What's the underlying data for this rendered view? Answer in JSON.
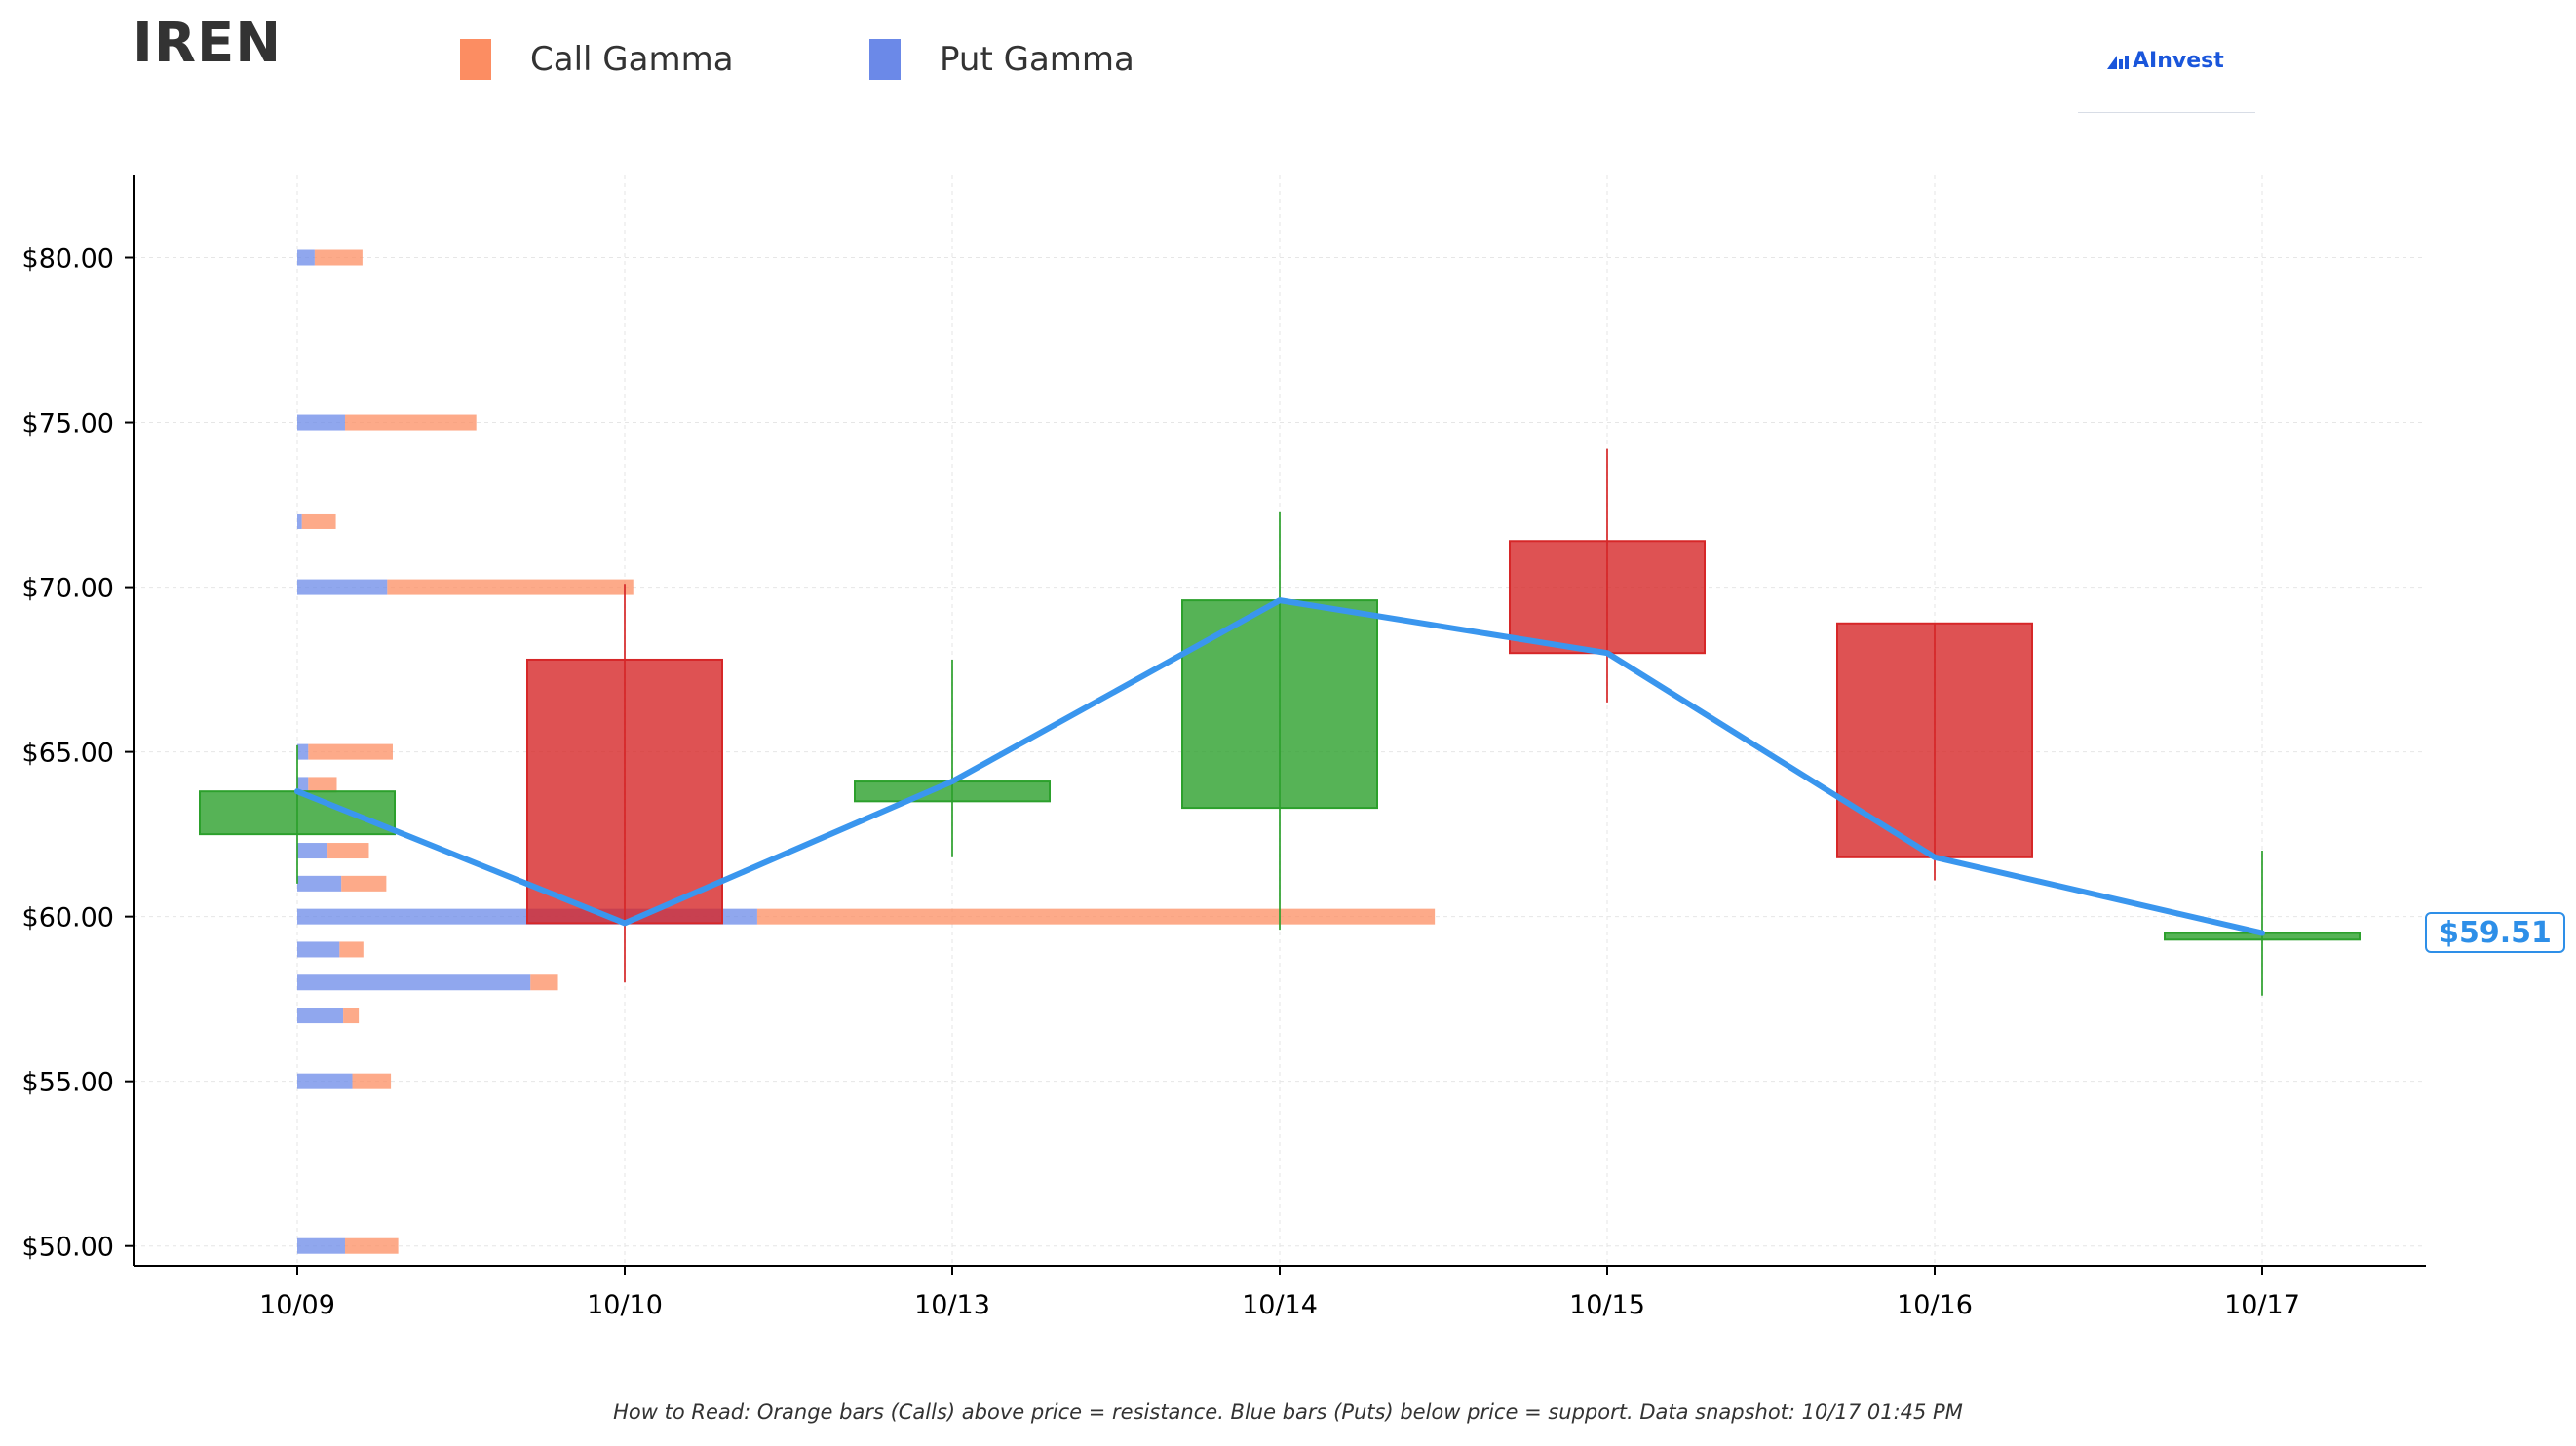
{
  "header": {
    "ticker": "IREN",
    "legend": [
      {
        "label": "Call Gamma",
        "color": "#fc8d62"
      },
      {
        "label": "Put Gamma",
        "color": "#6b89e8"
      }
    ],
    "logo_text": "AInvest",
    "logo_icon": "ainvest-logo-icon"
  },
  "footnote": "How to Read: Orange bars (Calls) above price = resistance. Blue bars (Puts) below price = support. Data snapshot: 10/17 01:45 PM",
  "price_label": "$59.51",
  "chart_data": {
    "type": "candlestick",
    "title": "IREN",
    "x_tick_labels": [
      "10/09",
      "10/10",
      "10/13",
      "10/14",
      "10/15",
      "10/16",
      "10/17"
    ],
    "y_ticks": [
      50,
      55,
      60,
      65,
      70,
      75,
      80
    ],
    "y_tick_labels": [
      "$50.00",
      "$55.00",
      "$60.00",
      "$65.00",
      "$70.00",
      "$75.00",
      "$80.00"
    ],
    "ylim": [
      49.4,
      82.5
    ],
    "grid": true,
    "legend_position": "top-left",
    "candles": [
      {
        "date": "10/09",
        "open": 62.5,
        "high": 65.2,
        "low": 61.0,
        "close": 63.8
      },
      {
        "date": "10/10",
        "open": 67.8,
        "high": 70.1,
        "low": 58.0,
        "close": 59.8
      },
      {
        "date": "10/13",
        "open": 63.5,
        "high": 67.8,
        "low": 61.8,
        "close": 64.1
      },
      {
        "date": "10/14",
        "open": 63.3,
        "high": 72.3,
        "low": 59.6,
        "close": 69.6
      },
      {
        "date": "10/15",
        "open": 71.4,
        "high": 74.2,
        "low": 66.5,
        "close": 68.0
      },
      {
        "date": "10/16",
        "open": 68.9,
        "high": 68.9,
        "low": 61.1,
        "close": 61.8
      },
      {
        "date": "10/17",
        "open": 59.3,
        "high": 62.0,
        "low": 57.6,
        "close": 59.5
      }
    ],
    "close_line": {
      "color": "#3a96ee",
      "values": [
        63.8,
        59.8,
        64.1,
        69.6,
        68.0,
        61.8,
        59.5
      ]
    },
    "gamma_bars": [
      {
        "strike": 80,
        "put": 0.19,
        "call": 0.52
      },
      {
        "strike": 75,
        "put": 0.52,
        "call": 1.43
      },
      {
        "strike": 72,
        "put": 0.05,
        "call": 0.37
      },
      {
        "strike": 70,
        "put": 0.98,
        "call": 2.68
      },
      {
        "strike": 65,
        "put": 0.12,
        "call": 0.92
      },
      {
        "strike": 64,
        "put": 0.12,
        "call": 0.31
      },
      {
        "strike": 62,
        "put": 0.33,
        "call": 0.45
      },
      {
        "strike": 61,
        "put": 0.48,
        "call": 0.49
      },
      {
        "strike": 60,
        "put": 5.01,
        "call": 7.38
      },
      {
        "strike": 59,
        "put": 0.46,
        "call": 0.26
      },
      {
        "strike": 58,
        "put": 2.54,
        "call": 0.3
      },
      {
        "strike": 57,
        "put": 0.5,
        "call": 0.17
      },
      {
        "strike": 55,
        "put": 0.6,
        "call": 0.42
      },
      {
        "strike": 50,
        "put": 0.52,
        "call": 0.58
      }
    ],
    "colors": {
      "up": "#2ca02c",
      "down": "#d62728",
      "call": "#fc8d62",
      "put": "#6b89e8"
    }
  }
}
